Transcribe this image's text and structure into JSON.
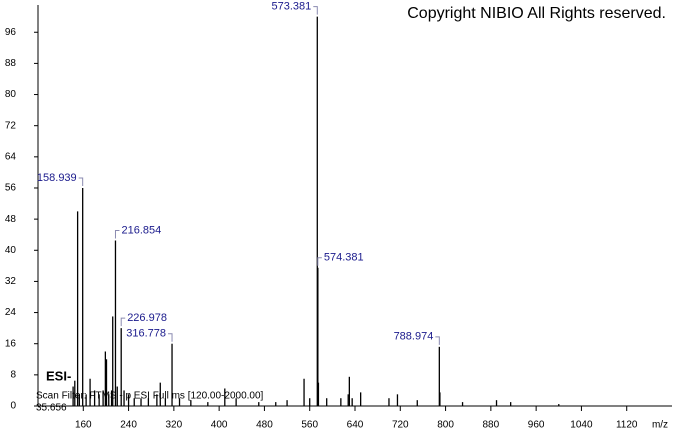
{
  "chart_data": {
    "type": "stem",
    "title": "Copyright NIBIO All Rights reserved.",
    "x_label": "m/z",
    "annotations": [
      "ESI-",
      "Scan Filter: FTMS - p ESI Full ms [120.00-2000.00]",
      "35.656"
    ],
    "x": [
      142,
      145,
      150,
      153,
      158.939,
      165,
      172,
      180,
      188,
      195,
      199,
      201,
      205,
      210,
      212,
      216.854,
      220,
      226.978,
      232,
      240,
      250,
      262,
      275,
      290,
      296,
      305,
      316.778,
      330,
      350,
      380,
      410,
      430,
      470,
      500,
      520,
      550,
      560,
      573.381,
      574.381,
      575.4,
      590,
      615,
      628,
      630,
      635,
      650,
      700,
      715,
      750,
      788.974,
      789.97,
      830,
      890,
      915,
      1000
    ],
    "values": [
      5,
      6.5,
      50,
      3,
      56,
      3,
      7,
      4,
      3,
      4,
      14,
      12,
      3,
      4,
      23,
      42.5,
      5,
      20,
      4,
      3,
      2,
      2,
      2,
      3,
      6,
      2,
      16,
      2,
      1.5,
      1,
      4.5,
      2,
      1,
      1,
      1.5,
      7,
      2,
      100,
      35.5,
      6,
      2,
      2,
      3,
      7.5,
      2,
      3.5,
      2,
      3,
      1.5,
      15.2,
      3.5,
      1,
      1.5,
      1,
      0.5
    ],
    "x_labels": [
      null,
      null,
      null,
      null,
      "158.939",
      null,
      null,
      null,
      null,
      null,
      null,
      null,
      null,
      null,
      null,
      "216.854",
      null,
      "226.978",
      null,
      null,
      null,
      null,
      null,
      null,
      null,
      null,
      "316.778",
      null,
      null,
      null,
      null,
      null,
      null,
      null,
      null,
      null,
      null,
      "573.381",
      "574.381",
      null,
      null,
      null,
      null,
      null,
      null,
      null,
      null,
      null,
      null,
      "788.974",
      null,
      null,
      null,
      null,
      null
    ],
    "color": "#000000",
    "label_color": "#1a1a8c",
    "xlim": [
      80,
      1200
    ],
    "xticks": [
      160,
      240,
      320,
      400,
      480,
      560,
      640,
      720,
      800,
      880,
      960,
      1040,
      1120
    ],
    "ylim": [
      0,
      103
    ],
    "yticks": [
      0,
      8,
      16,
      24,
      32,
      40,
      48,
      56,
      64,
      72,
      80,
      88,
      96
    ]
  }
}
